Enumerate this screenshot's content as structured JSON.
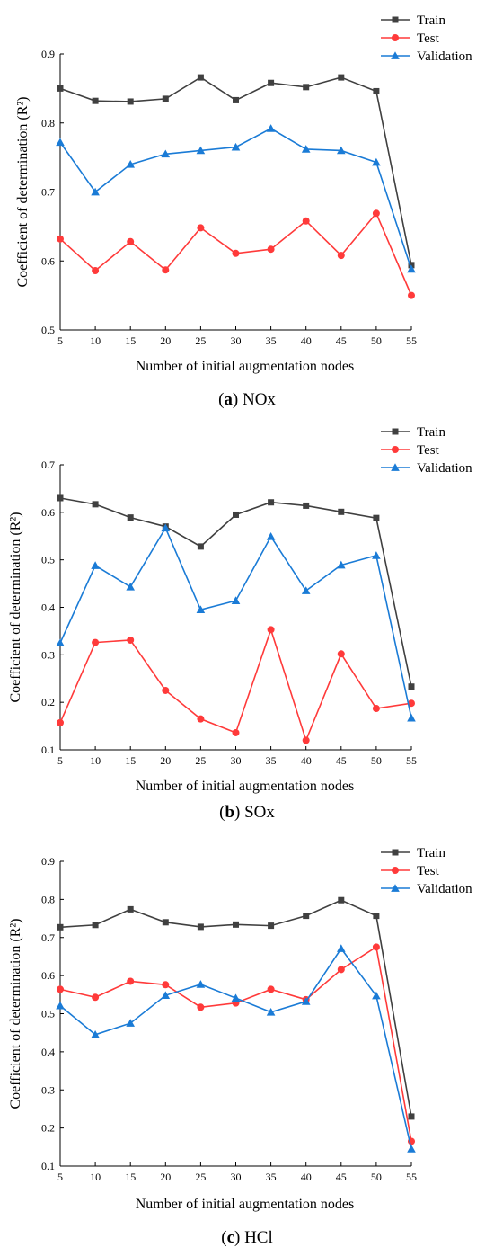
{
  "chart_data": [
    {
      "type": "line",
      "xlabel": "Number of initial augmentation nodes",
      "ylabel": "Coefficient of determination (R²)",
      "x": [
        5,
        10,
        15,
        20,
        25,
        30,
        35,
        40,
        45,
        50,
        55
      ],
      "xlim": [
        5,
        55
      ],
      "ylim": [
        0.5,
        0.9
      ],
      "yticks": [
        "0.5",
        "0.6",
        "0.7",
        "0.8",
        "0.9"
      ],
      "xticks": [
        "5",
        "10",
        "15",
        "20",
        "25",
        "30",
        "35",
        "40",
        "45",
        "50",
        "55"
      ],
      "legend_position": "top-right",
      "grid": false,
      "caption_letter": "a",
      "caption_text": "NOx",
      "series": [
        {
          "name": "Train",
          "marker": "square",
          "color": "#404040",
          "values": [
            0.85,
            0.832,
            0.831,
            0.835,
            0.866,
            0.833,
            0.858,
            0.852,
            0.866,
            0.846,
            0.594
          ]
        },
        {
          "name": "Test",
          "marker": "circle",
          "color": "#ff3a3a",
          "values": [
            0.632,
            0.586,
            0.628,
            0.587,
            0.648,
            0.611,
            0.617,
            0.658,
            0.608,
            0.669,
            0.55
          ]
        },
        {
          "name": "Validation",
          "marker": "triangle",
          "color": "#1a7bd6",
          "values": [
            0.772,
            0.7,
            0.74,
            0.755,
            0.76,
            0.765,
            0.792,
            0.762,
            0.76,
            0.743,
            0.588
          ]
        }
      ]
    },
    {
      "type": "line",
      "xlabel": "Number of initial augmentation nodes",
      "ylabel": "Coefficient of determination (R²)",
      "x": [
        5,
        10,
        15,
        20,
        25,
        30,
        35,
        40,
        45,
        50,
        55
      ],
      "xlim": [
        5,
        55
      ],
      "ylim": [
        0.1,
        0.7
      ],
      "yticks": [
        "0.1",
        "0.2",
        "0.3",
        "0.4",
        "0.5",
        "0.6",
        "0.7"
      ],
      "xticks": [
        "5",
        "10",
        "15",
        "20",
        "25",
        "30",
        "35",
        "40",
        "45",
        "50",
        "55"
      ],
      "legend_position": "top-right",
      "grid": false,
      "caption_letter": "b",
      "caption_text": "SOx",
      "series": [
        {
          "name": "Train",
          "marker": "square",
          "color": "#404040",
          "values": [
            0.63,
            0.617,
            0.589,
            0.57,
            0.528,
            0.595,
            0.621,
            0.614,
            0.601,
            0.588,
            0.233
          ]
        },
        {
          "name": "Test",
          "marker": "circle",
          "color": "#ff3a3a",
          "values": [
            0.157,
            0.326,
            0.331,
            0.225,
            0.165,
            0.136,
            0.353,
            0.12,
            0.302,
            0.187,
            0.198
          ]
        },
        {
          "name": "Validation",
          "marker": "triangle",
          "color": "#1a7bd6",
          "values": [
            0.325,
            0.488,
            0.443,
            0.567,
            0.395,
            0.414,
            0.549,
            0.435,
            0.489,
            0.509,
            0.167
          ]
        }
      ]
    },
    {
      "type": "line",
      "xlabel": "Number of initial augmentation nodes",
      "ylabel": "Coefficient of determination (R²)",
      "x": [
        5,
        10,
        15,
        20,
        25,
        30,
        35,
        40,
        45,
        50,
        55
      ],
      "xlim": [
        5,
        55
      ],
      "ylim": [
        0.1,
        0.9
      ],
      "yticks": [
        "0.1",
        "0.2",
        "0.3",
        "0.4",
        "0.5",
        "0.6",
        "0.7",
        "0.8",
        "0.9"
      ],
      "xticks": [
        "5",
        "10",
        "15",
        "20",
        "25",
        "30",
        "35",
        "40",
        "45",
        "50",
        "55"
      ],
      "legend_position": "top-right",
      "grid": false,
      "caption_letter": "c",
      "caption_text": "HCl",
      "series": [
        {
          "name": "Train",
          "marker": "square",
          "color": "#404040",
          "values": [
            0.727,
            0.733,
            0.774,
            0.74,
            0.728,
            0.734,
            0.731,
            0.757,
            0.798,
            0.757,
            0.23
          ]
        },
        {
          "name": "Test",
          "marker": "circle",
          "color": "#ff3a3a",
          "values": [
            0.564,
            0.543,
            0.585,
            0.576,
            0.517,
            0.528,
            0.564,
            0.537,
            0.616,
            0.675,
            0.165
          ]
        },
        {
          "name": "Validation",
          "marker": "triangle",
          "color": "#1a7bd6",
          "values": [
            0.521,
            0.445,
            0.475,
            0.548,
            0.577,
            0.541,
            0.504,
            0.532,
            0.671,
            0.547,
            0.145
          ]
        }
      ]
    }
  ]
}
